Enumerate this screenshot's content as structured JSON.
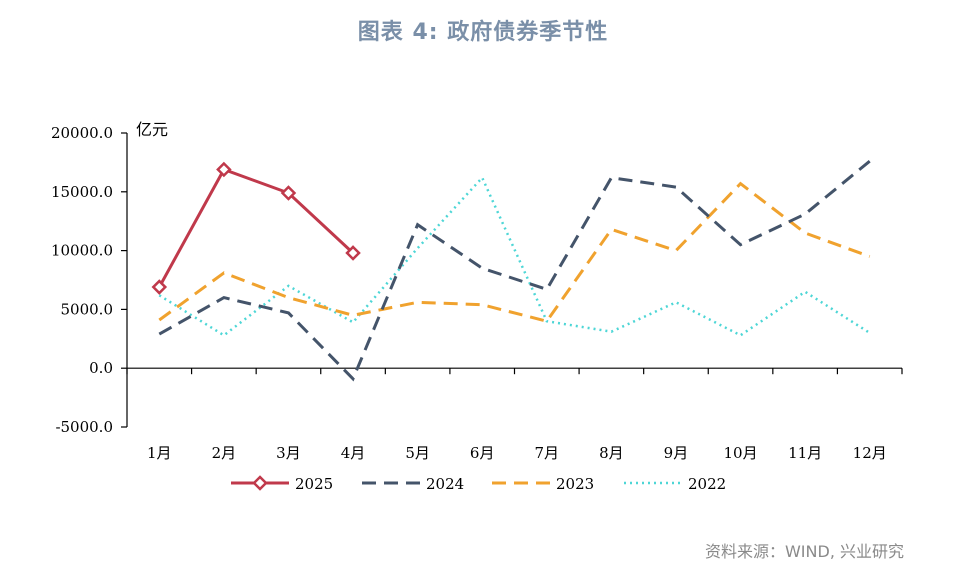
{
  "title": "图表 4: 政府债券季节性",
  "unit": "亿元",
  "source": "资料来源：WIND, 兴业研究",
  "chart_data": {
    "type": "line",
    "categories": [
      "1月",
      "2月",
      "3月",
      "4月",
      "5月",
      "6月",
      "7月",
      "8月",
      "9月",
      "10月",
      "11月",
      "12月"
    ],
    "yticks": [
      "20000.0",
      "15000.0",
      "10000.0",
      "5000.0",
      "0.0",
      "-5000.0"
    ],
    "ylim": [
      -5000,
      20000
    ],
    "grid": false,
    "legend": "bottom",
    "series": [
      {
        "name": "2025",
        "color": "#c0394b",
        "style": "solid-marker",
        "values": [
          6900,
          16900,
          14900,
          9800,
          null,
          null,
          null,
          null,
          null,
          null,
          null,
          null
        ]
      },
      {
        "name": "2024",
        "color": "#44546a",
        "style": "dashed",
        "values": [
          2900,
          6000,
          4700,
          -900,
          12200,
          8500,
          6700,
          16200,
          15400,
          10500,
          13100,
          17600
        ]
      },
      {
        "name": "2023",
        "color": "#f0a22e",
        "style": "dashed",
        "values": [
          4100,
          8100,
          6000,
          4500,
          5600,
          5400,
          4000,
          11800,
          10000,
          15700,
          11500,
          9500
        ]
      },
      {
        "name": "2022",
        "color": "#4dd6d6",
        "style": "dotted",
        "values": [
          6200,
          2800,
          7000,
          3900,
          10200,
          16200,
          4000,
          3100,
          5600,
          2800,
          6500,
          3000
        ]
      }
    ]
  }
}
